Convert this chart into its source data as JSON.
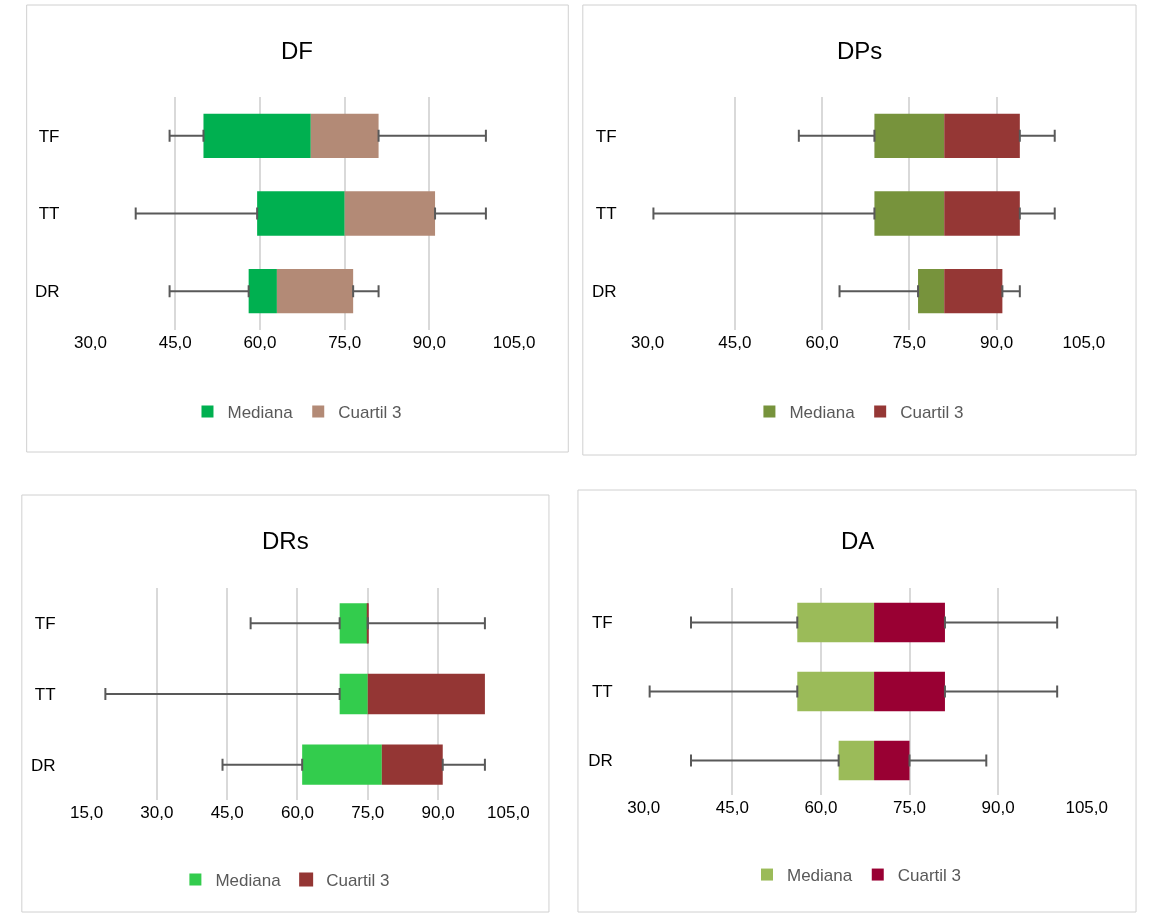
{
  "chart_data": [
    {
      "type": "bar",
      "orientation": "horizontal",
      "title": "DF",
      "categories": [
        "TF",
        "TT",
        "DR"
      ],
      "series": [
        {
          "name": "Mediana",
          "color": "#00b050",
          "base": [
            50,
            59.5,
            58
          ],
          "values": [
            19,
            15.5,
            5
          ],
          "errors": [
            [
              44,
              50
            ],
            [
              38,
              59.5
            ],
            [
              44,
              58
            ]
          ]
        },
        {
          "name": "Cuartil 3",
          "color": "#b38a76",
          "base": [
            69,
            75,
            63
          ],
          "values": [
            12,
            16,
            13.5
          ],
          "errors": [
            [
              81,
              100
            ],
            [
              91,
              100
            ],
            [
              76.5,
              81
            ]
          ]
        }
      ],
      "xlim": [
        30,
        105
      ],
      "xticks": [
        {
          "value": 30,
          "label": "30,0"
        },
        {
          "value": 45,
          "label": "45,0"
        },
        {
          "value": 60,
          "label": "60,0"
        },
        {
          "value": 75,
          "label": "75,0"
        },
        {
          "value": 90,
          "label": "90,0"
        },
        {
          "value": 105,
          "label": "105,0"
        }
      ],
      "grid": "x",
      "legend": "bottom"
    },
    {
      "type": "bar",
      "orientation": "horizontal",
      "title": "DPs",
      "categories": [
        "TF",
        "TT",
        "DR"
      ],
      "series": [
        {
          "name": "Mediana",
          "color": "#77933c",
          "base": [
            69,
            69,
            76.5
          ],
          "values": [
            12,
            12,
            4.5
          ],
          "errors": [
            [
              56,
              69
            ],
            [
              31,
              69
            ],
            [
              63,
              76.5
            ]
          ]
        },
        {
          "name": "Cuartil 3",
          "color": "#953735",
          "base": [
            81,
            81,
            81
          ],
          "values": [
            13,
            13,
            10
          ],
          "errors": [
            [
              94,
              100
            ],
            [
              94,
              100
            ],
            [
              91,
              94
            ]
          ]
        }
      ],
      "xlim": [
        30,
        105
      ],
      "xticks": [
        {
          "value": 30,
          "label": "30,0"
        },
        {
          "value": 45,
          "label": "45,0"
        },
        {
          "value": 60,
          "label": "60,0"
        },
        {
          "value": 75,
          "label": "75,0"
        },
        {
          "value": 90,
          "label": "90,0"
        },
        {
          "value": 105,
          "label": "105,0"
        }
      ],
      "grid": "x",
      "legend": "bottom"
    },
    {
      "type": "bar",
      "orientation": "horizontal",
      "title": "DRs",
      "categories": [
        "TF",
        "TT",
        "DR"
      ],
      "series": [
        {
          "name": "Mediana",
          "color": "#33cc4d",
          "base": [
            69,
            69,
            61
          ],
          "values": [
            6,
            6,
            17
          ],
          "errors": [
            [
              50,
              69
            ],
            [
              19,
              69
            ],
            [
              44,
              61
            ]
          ]
        },
        {
          "name": "Cuartil 3",
          "color": "#943634",
          "base": [
            75,
            75,
            78
          ],
          "values": [
            0,
            25,
            13
          ],
          "errors": [
            [
              75,
              100
            ],
            null,
            [
              91,
              100
            ]
          ]
        }
      ],
      "xlim": [
        15,
        105
      ],
      "xticks": [
        {
          "value": 15,
          "label": "15,0"
        },
        {
          "value": 30,
          "label": "30,0"
        },
        {
          "value": 45,
          "label": "45,0"
        },
        {
          "value": 60,
          "label": "60,0"
        },
        {
          "value": 75,
          "label": "75,0"
        },
        {
          "value": 90,
          "label": "90,0"
        },
        {
          "value": 105,
          "label": "105,0"
        }
      ],
      "grid": "x",
      "legend": "bottom"
    },
    {
      "type": "bar",
      "orientation": "horizontal",
      "title": "DA",
      "categories": [
        "TF",
        "TT",
        "DR"
      ],
      "series": [
        {
          "name": "Mediana",
          "color": "#9bbb59",
          "base": [
            56,
            56,
            63
          ],
          "values": [
            13,
            13,
            6
          ],
          "errors": [
            [
              38,
              56
            ],
            [
              31,
              56
            ],
            [
              38,
              63
            ]
          ]
        },
        {
          "name": "Cuartil 3",
          "color": "#990033",
          "base": [
            69,
            69,
            69
          ],
          "values": [
            12,
            12,
            6
          ],
          "errors": [
            [
              81,
              100
            ],
            [
              81,
              100
            ],
            [
              75,
              88
            ]
          ]
        }
      ],
      "xlim": [
        30,
        105
      ],
      "xticks": [
        {
          "value": 30,
          "label": "30,0"
        },
        {
          "value": 45,
          "label": "45,0"
        },
        {
          "value": 60,
          "label": "60,0"
        },
        {
          "value": 75,
          "label": "75,0"
        },
        {
          "value": 90,
          "label": "90,0"
        },
        {
          "value": 105,
          "label": "105,0"
        }
      ],
      "grid": "x",
      "legend": "bottom"
    }
  ]
}
